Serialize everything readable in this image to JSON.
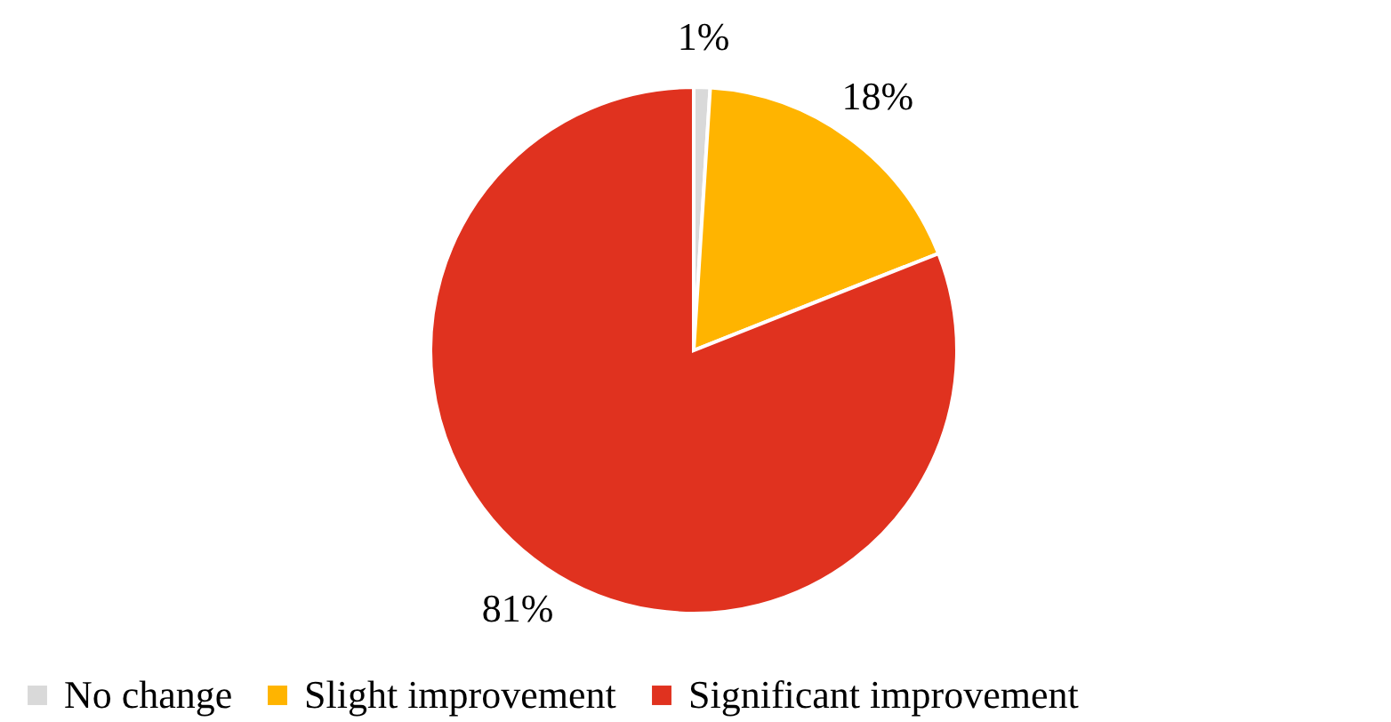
{
  "chart_data": {
    "type": "pie",
    "categories": [
      "No change",
      "Slight improvement",
      "Significant improvement"
    ],
    "values": [
      1,
      18,
      81
    ],
    "colors": [
      "#d9d9d9",
      "#ffb400",
      "#e0321f"
    ],
    "value_labels": [
      "1%",
      "18%",
      "81%"
    ],
    "legend": "bottom"
  }
}
